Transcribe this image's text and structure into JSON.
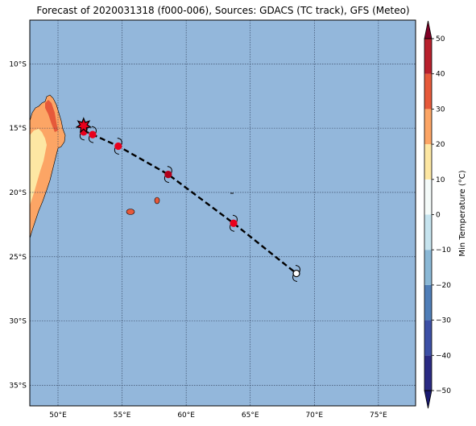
{
  "title": "Forecast of 2020031318 (f000-006), Sources: GDACS (TC track), GFS (Meteo)",
  "map": {
    "lon_range": [
      47.8,
      77.9
    ],
    "lat_range": [
      -36.6,
      -6.6
    ],
    "lon_ticks": [
      50,
      55,
      60,
      65,
      70,
      75
    ],
    "lon_tick_labels": [
      "50°E",
      "55°E",
      "60°E",
      "65°E",
      "70°E",
      "75°E"
    ],
    "lat_ticks": [
      -10,
      -15,
      -20,
      -25,
      -30,
      -35
    ],
    "lat_tick_labels": [
      "10°S",
      "15°S",
      "20°S",
      "25°S",
      "30°S",
      "35°S"
    ],
    "gridlines": true,
    "ocean_color": "#93b7db"
  },
  "track": {
    "points": [
      {
        "lon": 52.0,
        "lat": -15.2
      },
      {
        "lon": 52.7,
        "lat": -15.5
      },
      {
        "lon": 54.7,
        "lat": -16.4
      },
      {
        "lon": 58.6,
        "lat": -18.6
      },
      {
        "lon": 63.7,
        "lat": -22.4
      },
      {
        "lon": 68.6,
        "lat": -26.3
      }
    ],
    "current_position": {
      "lon": 52.0,
      "lat": -14.8
    },
    "markers": [
      {
        "lon": 52.0,
        "lat": -15.3,
        "color": "#e8001c"
      },
      {
        "lon": 52.7,
        "lat": -15.5,
        "color": "#e8001c"
      },
      {
        "lon": 54.7,
        "lat": -16.4,
        "color": "#e8001c"
      },
      {
        "lon": 58.6,
        "lat": -18.6,
        "color": "#b2001a"
      },
      {
        "lon": 63.7,
        "lat": -22.4,
        "color": "#e8001c"
      },
      {
        "lon": 68.6,
        "lat": -26.3,
        "color": "#ffffff"
      }
    ]
  },
  "colorbar": {
    "label": "Min Temperature (°C)",
    "min": -50,
    "max": 50,
    "tick_values": [
      50,
      40,
      30,
      20,
      10,
      0,
      -10,
      -20,
      -30,
      -40,
      -50
    ],
    "tick_labels": [
      "50",
      "40",
      "30",
      "20",
      "10",
      "0",
      "−10",
      "−20",
      "−30",
      "−40",
      "−50"
    ],
    "bands": [
      {
        "from": -50,
        "to": -40,
        "color": "#2a2a83"
      },
      {
        "from": -40,
        "to": -30,
        "color": "#3c4fa5"
      },
      {
        "from": -30,
        "to": -20,
        "color": "#4f7eb8"
      },
      {
        "from": -20,
        "to": -10,
        "color": "#8ab8d6"
      },
      {
        "from": -10,
        "to": 0,
        "color": "#c6e4ef"
      },
      {
        "from": 0,
        "to": 10,
        "color": "#f4fbf9"
      },
      {
        "from": 10,
        "to": 20,
        "color": "#fde7a3"
      },
      {
        "from": 20,
        "to": 30,
        "color": "#fca565"
      },
      {
        "from": 30,
        "to": 40,
        "color": "#e6593a"
      },
      {
        "from": 40,
        "to": 50,
        "color": "#b8202d"
      }
    ],
    "extend_low_color": "#1a1a70",
    "extend_high_color": "#800026"
  }
}
